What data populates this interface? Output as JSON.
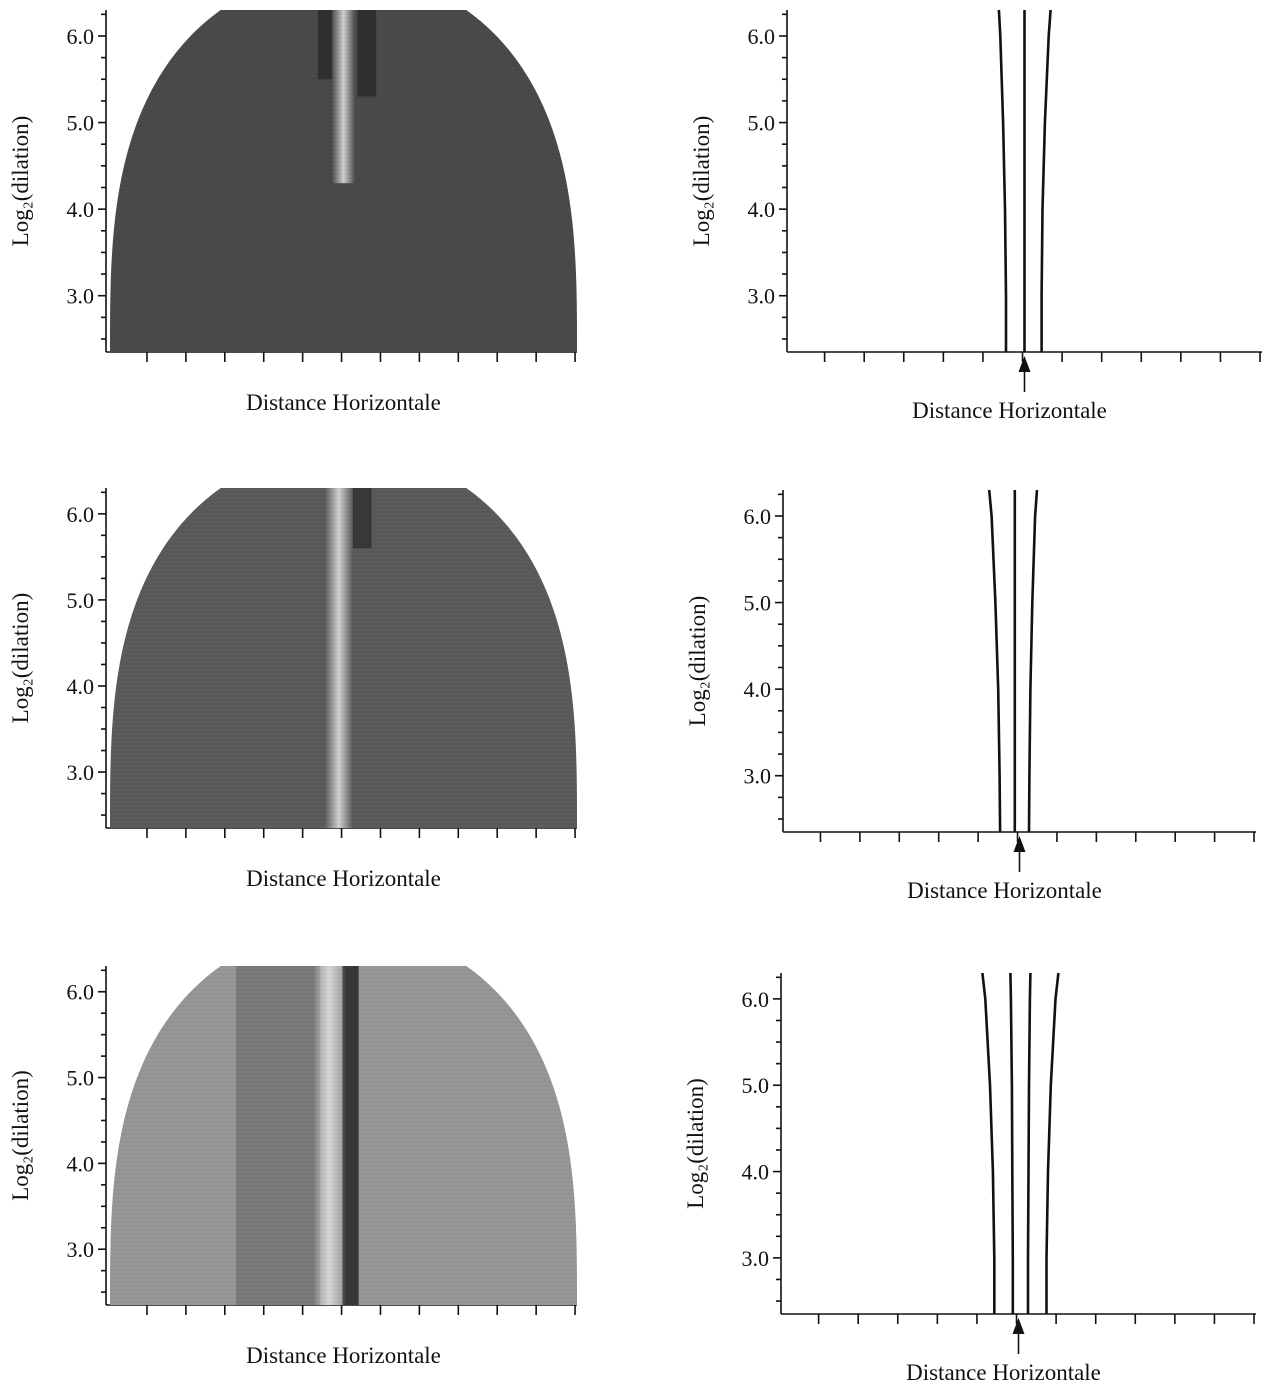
{
  "figure": {
    "background": "#ffffff",
    "ink": "#111111"
  },
  "chart_data": [
    {
      "type": "heatmap",
      "row": 1,
      "column": 1,
      "xlabel": "Distance Horizontale",
      "ylabel": "Log₂(dilation)",
      "ylim": [
        2.35,
        6.3
      ],
      "y_ticks": [
        "3.0",
        "4.0",
        "5.0",
        "6.0"
      ],
      "y_tick_values": [
        3.0,
        4.0,
        5.0,
        6.0
      ],
      "x_tick_count": 12,
      "colorscale": [
        "#1a1a1a",
        "#f2f2f2"
      ],
      "background_level": 0.22,
      "bright_band": {
        "x": 0.5,
        "width": 0.025,
        "level": 0.85,
        "from_y": 4.3
      },
      "dark_bands": [
        {
          "x": 0.46,
          "width": 0.03,
          "level": 0.08,
          "from_y": 5.5
        },
        {
          "x": 0.55,
          "width": 0.04,
          "level": 0.08,
          "from_y": 5.3
        }
      ]
    },
    {
      "type": "line",
      "row": 1,
      "column": 2,
      "xlabel": "Distance Horizontale",
      "ylabel": "Log₂(dilation)",
      "ylim": [
        2.35,
        6.3
      ],
      "y_ticks": [
        "3.0",
        "4.0",
        "5.0",
        "6.0"
      ],
      "y_tick_values": [
        3.0,
        4.0,
        5.0,
        6.0
      ],
      "x_tick_count": 12,
      "marker": "arrow",
      "marker_x": 0.5,
      "series": [
        {
          "y": [
            2.35,
            3.0,
            4.0,
            5.0,
            6.0,
            6.3
          ],
          "x": [
            0.461,
            0.461,
            0.459,
            0.455,
            0.449,
            0.446
          ]
        },
        {
          "y": [
            2.35,
            3.0,
            4.0,
            5.0,
            6.0,
            6.3
          ],
          "x": [
            0.5,
            0.5,
            0.5,
            0.5,
            0.5,
            0.5
          ]
        },
        {
          "y": [
            2.35,
            3.0,
            4.0,
            5.0,
            6.0,
            6.3
          ],
          "x": [
            0.536,
            0.536,
            0.538,
            0.543,
            0.551,
            0.555
          ]
        }
      ]
    },
    {
      "type": "heatmap",
      "row": 2,
      "column": 1,
      "xlabel": "Distance Horizontale",
      "ylabel": "Log₂(dilation)",
      "ylim": [
        2.35,
        6.3
      ],
      "y_ticks": [
        "3.0",
        "4.0",
        "5.0",
        "6.0"
      ],
      "y_tick_values": [
        3.0,
        4.0,
        5.0,
        6.0
      ],
      "x_tick_count": 12,
      "colorscale": [
        "#1a1a1a",
        "#f2f2f2"
      ],
      "background_level": 0.3,
      "bright_band": {
        "x": 0.49,
        "width": 0.03,
        "level": 0.85,
        "from_y": 2.35
      },
      "dark_bands": [
        {
          "x": 0.54,
          "width": 0.04,
          "level": 0.12,
          "from_y": 5.6
        }
      ]
    },
    {
      "type": "line",
      "row": 2,
      "column": 2,
      "xlabel": "Distance Horizontale",
      "ylabel": "Log₂(dilation)",
      "ylim": [
        2.35,
        6.3
      ],
      "y_ticks": [
        "3.0",
        "4.0",
        "5.0",
        "6.0"
      ],
      "y_tick_values": [
        3.0,
        4.0,
        5.0,
        6.0
      ],
      "x_tick_count": 12,
      "marker": "arrow",
      "marker_x": 0.5,
      "series": [
        {
          "y": [
            2.35,
            3.0,
            4.0,
            5.0,
            6.0,
            6.3
          ],
          "x": [
            0.459,
            0.458,
            0.455,
            0.449,
            0.441,
            0.436
          ]
        },
        {
          "y": [
            2.35,
            3.0,
            4.0,
            5.0,
            6.0,
            6.3
          ],
          "x": [
            0.49,
            0.49,
            0.49,
            0.49,
            0.49,
            0.49
          ]
        },
        {
          "y": [
            2.35,
            3.0,
            4.0,
            5.0,
            6.0,
            6.3
          ],
          "x": [
            0.52,
            0.521,
            0.523,
            0.527,
            0.533,
            0.537
          ]
        }
      ]
    },
    {
      "type": "heatmap",
      "row": 3,
      "column": 1,
      "xlabel": "Distance Horizontale",
      "ylabel": "Log₂(dilation)",
      "ylim": [
        2.35,
        6.3
      ],
      "y_ticks": [
        "3.0",
        "4.0",
        "5.0",
        "6.0"
      ],
      "y_tick_values": [
        3.0,
        4.0,
        5.0,
        6.0
      ],
      "x_tick_count": 12,
      "colorscale": [
        "#1a1a1a",
        "#f2f2f2"
      ],
      "background_level": 0.58,
      "bright_band": {
        "x": 0.47,
        "width": 0.035,
        "level": 0.88,
        "from_y": 2.35
      },
      "dark_bands": [
        {
          "x": 0.515,
          "width": 0.035,
          "level": 0.06,
          "from_y": 2.35
        },
        {
          "x": 0.36,
          "width": 0.18,
          "level": 0.42,
          "from_y": 2.35
        }
      ]
    },
    {
      "type": "line",
      "row": 3,
      "column": 2,
      "xlabel": "Distance Horizontale",
      "ylabel": "Log₂(dilation)",
      "ylim": [
        2.35,
        6.3
      ],
      "y_ticks": [
        "3.0",
        "4.0",
        "5.0",
        "6.0"
      ],
      "y_tick_values": [
        3.0,
        4.0,
        5.0,
        6.0
      ],
      "x_tick_count": 12,
      "marker": "arrow",
      "marker_x": 0.5,
      "series": [
        {
          "y": [
            2.35,
            3.0,
            4.0,
            5.0,
            6.0,
            6.3
          ],
          "x": [
            0.449,
            0.449,
            0.446,
            0.44,
            0.43,
            0.424
          ]
        },
        {
          "y": [
            2.35,
            3.0,
            4.0,
            5.0,
            6.0,
            6.3
          ],
          "x": [
            0.488,
            0.488,
            0.487,
            0.486,
            0.484,
            0.483
          ]
        },
        {
          "y": [
            2.35,
            3.0,
            4.0,
            5.0,
            6.0,
            6.3
          ],
          "x": [
            0.52,
            0.52,
            0.521,
            0.522,
            0.524,
            0.525
          ]
        },
        {
          "y": [
            2.35,
            3.0,
            4.0,
            5.0,
            6.0,
            6.3
          ],
          "x": [
            0.559,
            0.559,
            0.562,
            0.568,
            0.578,
            0.584
          ]
        }
      ]
    }
  ]
}
